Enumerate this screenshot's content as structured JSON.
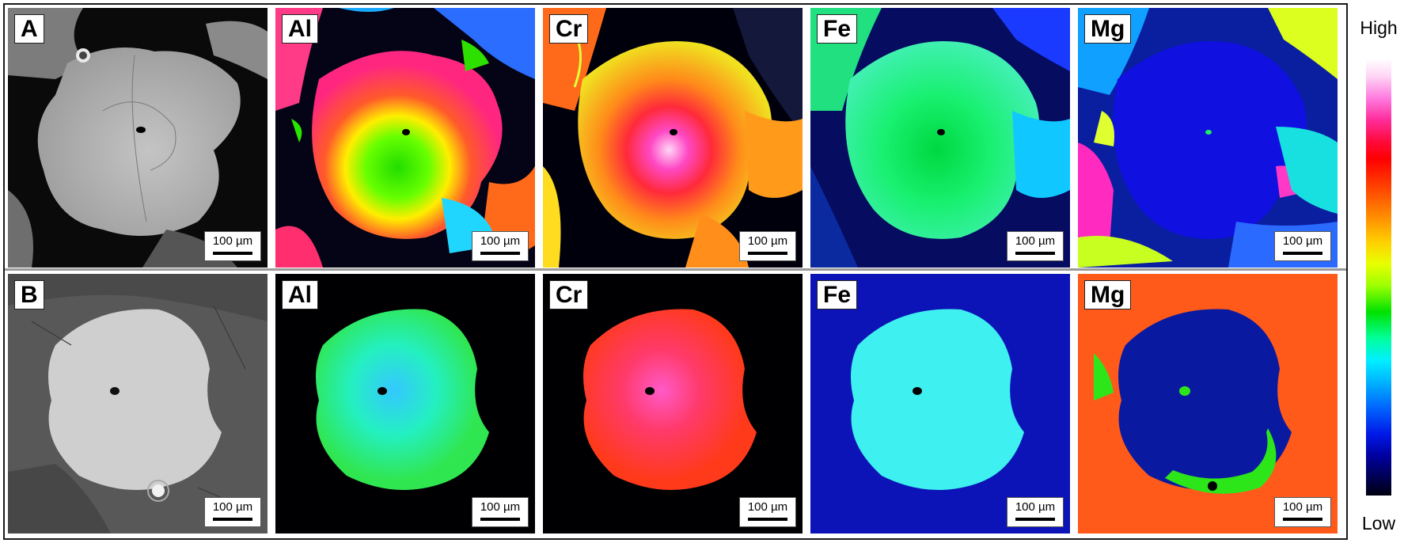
{
  "figure": {
    "rows": [
      {
        "panels": [
          {
            "label": "A",
            "scale": "100 µm",
            "kind": "bse"
          },
          {
            "label": "Al",
            "scale": "100 µm",
            "kind": "al-zoned"
          },
          {
            "label": "Cr",
            "scale": "100 µm",
            "kind": "cr-zoned"
          },
          {
            "label": "Fe",
            "scale": "100 µm",
            "kind": "fe-zoned"
          },
          {
            "label": "Mg",
            "scale": "100 µm",
            "kind": "mg-zoned"
          }
        ]
      },
      {
        "panels": [
          {
            "label": "B",
            "scale": "100 µm",
            "kind": "bse"
          },
          {
            "label": "Al",
            "scale": "100 µm",
            "kind": "al-homog"
          },
          {
            "label": "Cr",
            "scale": "100 µm",
            "kind": "cr-homog"
          },
          {
            "label": "Fe",
            "scale": "100 µm",
            "kind": "fe-homog"
          },
          {
            "label": "Mg",
            "scale": "100 µm",
            "kind": "mg-homog"
          }
        ]
      }
    ]
  },
  "colorbar": {
    "high_label": "High",
    "low_label": "Low"
  }
}
